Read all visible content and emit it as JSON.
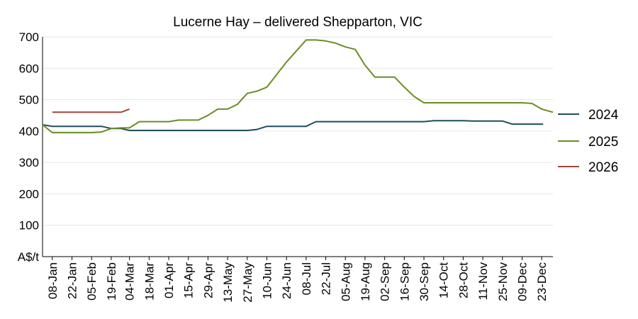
{
  "chart_data": {
    "type": "line",
    "title": "Lucerne Hay – delivered Shepparton, VIC",
    "ylabel": "A$/t",
    "ylim": [
      0,
      700
    ],
    "yticks": [
      0,
      100,
      200,
      300,
      400,
      500,
      600,
      700
    ],
    "grid": true,
    "legend_position": "right",
    "x_start": "01-Jan",
    "x_end": "31-Dec",
    "x_ticks": [
      "08-Jan",
      "22-Jan",
      "05-Feb",
      "19-Feb",
      "04-Mar",
      "18-Mar",
      "01-Apr",
      "15-Apr",
      "29-Apr",
      "13-May",
      "27-May",
      "10-Jun",
      "24-Jun",
      "08-Jul",
      "22-Jul",
      "05-Aug",
      "19-Aug",
      "02-Sep",
      "16-Sep",
      "30-Sep",
      "14-Oct",
      "28-Oct",
      "11-Nov",
      "25-Nov",
      "09-Dec",
      "23-Dec"
    ],
    "series": [
      {
        "name": "2024",
        "color": "#1f4e5f",
        "points": [
          [
            "01-Jan",
            420
          ],
          [
            "08-Jan",
            415
          ],
          [
            "22-Jan",
            415
          ],
          [
            "05-Feb",
            415
          ],
          [
            "12-Feb",
            415
          ],
          [
            "19-Feb",
            408
          ],
          [
            "26-Feb",
            408
          ],
          [
            "04-Mar",
            402
          ],
          [
            "18-Mar",
            402
          ],
          [
            "01-Apr",
            402
          ],
          [
            "15-Apr",
            402
          ],
          [
            "29-Apr",
            402
          ],
          [
            "13-May",
            402
          ],
          [
            "27-May",
            402
          ],
          [
            "03-Jun",
            405
          ],
          [
            "10-Jun",
            415
          ],
          [
            "24-Jun",
            415
          ],
          [
            "08-Jul",
            415
          ],
          [
            "15-Jul",
            430
          ],
          [
            "22-Jul",
            430
          ],
          [
            "05-Aug",
            430
          ],
          [
            "19-Aug",
            430
          ],
          [
            "02-Sep",
            430
          ],
          [
            "16-Sep",
            430
          ],
          [
            "30-Sep",
            430
          ],
          [
            "07-Oct",
            433
          ],
          [
            "14-Oct",
            433
          ],
          [
            "28-Oct",
            433
          ],
          [
            "04-Nov",
            432
          ],
          [
            "11-Nov",
            432
          ],
          [
            "25-Nov",
            432
          ],
          [
            "02-Dec",
            422
          ],
          [
            "09-Dec",
            422
          ],
          [
            "23-Dec",
            422
          ],
          [
            "24-Dec",
            422
          ]
        ]
      },
      {
        "name": "2025",
        "color": "#6b8e23",
        "points": [
          [
            "01-Jan",
            420
          ],
          [
            "08-Jan",
            395
          ],
          [
            "22-Jan",
            395
          ],
          [
            "05-Feb",
            395
          ],
          [
            "12-Feb",
            397
          ],
          [
            "19-Feb",
            408
          ],
          [
            "26-Feb",
            410
          ],
          [
            "04-Mar",
            410
          ],
          [
            "11-Mar",
            430
          ],
          [
            "18-Mar",
            430
          ],
          [
            "01-Apr",
            430
          ],
          [
            "08-Apr",
            435
          ],
          [
            "22-Apr",
            435
          ],
          [
            "29-Apr",
            450
          ],
          [
            "06-May",
            470
          ],
          [
            "13-May",
            470
          ],
          [
            "20-May",
            485
          ],
          [
            "27-May",
            520
          ],
          [
            "03-Jun",
            527
          ],
          [
            "10-Jun",
            540
          ],
          [
            "17-Jun",
            580
          ],
          [
            "24-Jun",
            620
          ],
          [
            "01-Jul",
            655
          ],
          [
            "08-Jul",
            690
          ],
          [
            "15-Jul",
            690
          ],
          [
            "22-Jul",
            687
          ],
          [
            "29-Jul",
            680
          ],
          [
            "05-Aug",
            668
          ],
          [
            "12-Aug",
            660
          ],
          [
            "19-Aug",
            610
          ],
          [
            "26-Aug",
            572
          ],
          [
            "02-Sep",
            572
          ],
          [
            "09-Sep",
            572
          ],
          [
            "16-Sep",
            540
          ],
          [
            "23-Sep",
            510
          ],
          [
            "30-Sep",
            490
          ],
          [
            "14-Oct",
            490
          ],
          [
            "28-Oct",
            490
          ],
          [
            "11-Nov",
            490
          ],
          [
            "25-Nov",
            490
          ],
          [
            "09-Dec",
            490
          ],
          [
            "16-Dec",
            488
          ],
          [
            "23-Dec",
            470
          ],
          [
            "31-Dec",
            460
          ]
        ]
      },
      {
        "name": "2026",
        "color": "#a0463c",
        "points": [
          [
            "08-Jan",
            460
          ],
          [
            "15-Jan",
            460
          ],
          [
            "22-Jan",
            460
          ],
          [
            "29-Jan",
            460
          ],
          [
            "05-Feb",
            460
          ],
          [
            "12-Feb",
            460
          ],
          [
            "19-Feb",
            460
          ],
          [
            "26-Feb",
            460
          ],
          [
            "04-Mar",
            470
          ]
        ]
      }
    ]
  }
}
